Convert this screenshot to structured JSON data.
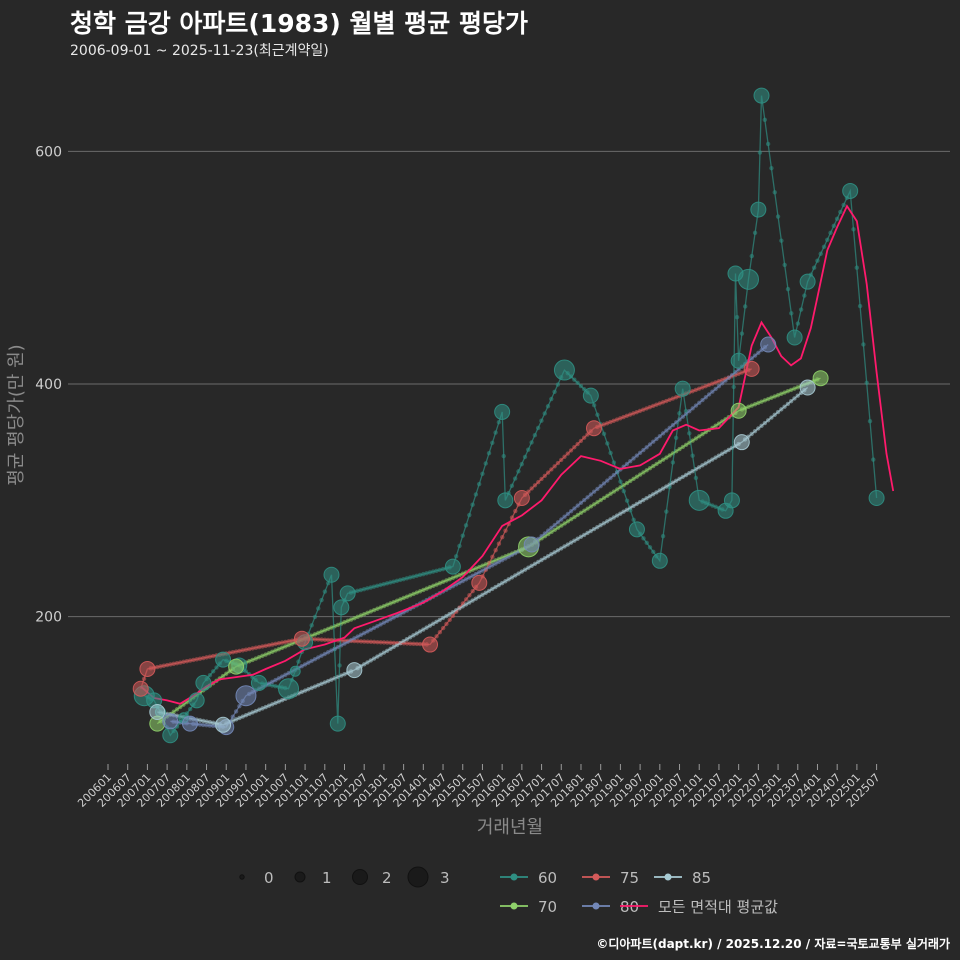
{
  "header": {
    "title": "청학 금강 아파트(1983) 월별 평균 평당가",
    "subtitle": "2006-09-01 ~ 2025-11-23(최근계약일)"
  },
  "footer": {
    "credit": "©디아파트(dapt.kr) / 2025.12.20 / 자료=국토교통부 실거래가"
  },
  "colors": {
    "s60": "#2f8f83",
    "s70": "#8fd16a",
    "s75": "#d45a5a",
    "s80": "#7388b8",
    "s85": "#a8cbd4",
    "avg": "#ff1a6c",
    "grid": "#6b6b6b"
  },
  "chart_data": {
    "type": "scatter",
    "title": "청학 금강 아파트(1983) 월별 평균 평당가",
    "xlabel": "거래년월",
    "ylabel": "평균 평당가(만 원)",
    "x_start": "2006-01",
    "x_end": "2025-10",
    "ylim": [
      75,
      670
    ],
    "yticks": [
      200,
      400,
      600
    ],
    "xticks": [
      "200601",
      "200607",
      "200701",
      "200707",
      "200801",
      "200807",
      "200901",
      "200907",
      "201001",
      "201007",
      "201101",
      "201107",
      "201201",
      "201207",
      "201301",
      "201307",
      "201401",
      "201407",
      "201501",
      "201507",
      "201601",
      "201607",
      "201701",
      "201707",
      "201801",
      "201807",
      "201901",
      "201907",
      "202001",
      "202007",
      "202101",
      "202107",
      "202201",
      "202207",
      "202301",
      "202307",
      "202401",
      "202407",
      "202501",
      "202507"
    ],
    "size_legend": {
      "title": "",
      "values": [
        0,
        1,
        2,
        3
      ],
      "labels": [
        "0",
        "1",
        "2",
        "3"
      ]
    },
    "series": [
      {
        "name": "60",
        "color_key": "s60",
        "points": [
          {
            "t": 2006.92,
            "v": 132,
            "s": 3
          },
          {
            "t": 2007.17,
            "v": 128,
            "s": 2
          },
          {
            "t": 2007.33,
            "v": 118,
            "s": 1
          },
          {
            "t": 2007.58,
            "v": 98,
            "s": 2
          },
          {
            "t": 2007.92,
            "v": 113,
            "s": 1
          },
          {
            "t": 2008.25,
            "v": 128,
            "s": 2
          },
          {
            "t": 2008.42,
            "v": 143,
            "s": 2
          },
          {
            "t": 2008.92,
            "v": 163,
            "s": 2
          },
          {
            "t": 2009.33,
            "v": 158,
            "s": 2
          },
          {
            "t": 2009.83,
            "v": 143,
            "s": 2
          },
          {
            "t": 2010.58,
            "v": 138,
            "s": 3
          },
          {
            "t": 2010.75,
            "v": 153,
            "s": 1
          },
          {
            "t": 2011.0,
            "v": 178,
            "s": 2
          },
          {
            "t": 2011.67,
            "v": 236,
            "s": 2
          },
          {
            "t": 2011.83,
            "v": 108,
            "s": 2
          },
          {
            "t": 2011.92,
            "v": 208,
            "s": 2
          },
          {
            "t": 2012.08,
            "v": 220,
            "s": 2
          },
          {
            "t": 2014.75,
            "v": 243,
            "s": 2
          },
          {
            "t": 2016.0,
            "v": 376,
            "s": 2
          },
          {
            "t": 2016.08,
            "v": 300,
            "s": 2
          },
          {
            "t": 2017.58,
            "v": 412,
            "s": 3
          },
          {
            "t": 2018.25,
            "v": 390,
            "s": 2
          },
          {
            "t": 2019.42,
            "v": 275,
            "s": 2
          },
          {
            "t": 2020.0,
            "v": 248,
            "s": 2
          },
          {
            "t": 2020.58,
            "v": 396,
            "s": 2
          },
          {
            "t": 2021.0,
            "v": 300,
            "s": 3
          },
          {
            "t": 2021.67,
            "v": 291,
            "s": 2
          },
          {
            "t": 2021.83,
            "v": 300,
            "s": 2
          },
          {
            "t": 2021.92,
            "v": 495,
            "s": 2
          },
          {
            "t": 2022.0,
            "v": 420,
            "s": 2
          },
          {
            "t": 2022.25,
            "v": 490,
            "s": 3
          },
          {
            "t": 2022.5,
            "v": 550,
            "s": 2
          },
          {
            "t": 2022.58,
            "v": 648,
            "s": 2
          },
          {
            "t": 2023.42,
            "v": 440,
            "s": 2
          },
          {
            "t": 2023.75,
            "v": 488,
            "s": 2
          },
          {
            "t": 2024.83,
            "v": 566,
            "s": 2
          },
          {
            "t": 2025.5,
            "v": 302,
            "s": 2
          }
        ]
      },
      {
        "name": "70",
        "color_key": "s70",
        "points": [
          {
            "t": 2007.25,
            "v": 108,
            "s": 2
          },
          {
            "t": 2009.25,
            "v": 157,
            "s": 2
          },
          {
            "t": 2016.67,
            "v": 260,
            "s": 3
          },
          {
            "t": 2022.0,
            "v": 377,
            "s": 2
          },
          {
            "t": 2024.08,
            "v": 405,
            "s": 2
          }
        ]
      },
      {
        "name": "75",
        "color_key": "s75",
        "points": [
          {
            "t": 2006.83,
            "v": 138,
            "s": 2
          },
          {
            "t": 2007.0,
            "v": 155,
            "s": 2
          },
          {
            "t": 2010.92,
            "v": 181,
            "s": 2
          },
          {
            "t": 2014.17,
            "v": 176,
            "s": 2
          },
          {
            "t": 2015.42,
            "v": 229,
            "s": 2
          },
          {
            "t": 2016.5,
            "v": 302,
            "s": 2
          },
          {
            "t": 2018.33,
            "v": 362,
            "s": 2
          },
          {
            "t": 2022.33,
            "v": 413,
            "s": 2
          }
        ]
      },
      {
        "name": "80",
        "color_key": "s80",
        "points": [
          {
            "t": 2007.58,
            "v": 110,
            "s": 2
          },
          {
            "t": 2008.08,
            "v": 108,
            "s": 2
          },
          {
            "t": 2009.0,
            "v": 105,
            "s": 2
          },
          {
            "t": 2009.5,
            "v": 132,
            "s": 3
          },
          {
            "t": 2016.75,
            "v": 262,
            "s": 2
          },
          {
            "t": 2022.75,
            "v": 434,
            "s": 2
          }
        ]
      },
      {
        "name": "85",
        "color_key": "s85",
        "points": [
          {
            "t": 2007.25,
            "v": 118,
            "s": 2
          },
          {
            "t": 2008.92,
            "v": 107,
            "s": 2
          },
          {
            "t": 2012.25,
            "v": 154,
            "s": 2
          },
          {
            "t": 2022.08,
            "v": 350,
            "s": 2
          },
          {
            "t": 2023.75,
            "v": 397,
            "s": 2
          }
        ]
      },
      {
        "name": "모든 면적대 평균값",
        "color_key": "avg",
        "points": [
          {
            "t": 2006.83,
            "v": 140
          },
          {
            "t": 2007.17,
            "v": 130
          },
          {
            "t": 2007.5,
            "v": 128
          },
          {
            "t": 2007.83,
            "v": 125
          },
          {
            "t": 2008.17,
            "v": 132
          },
          {
            "t": 2008.5,
            "v": 140
          },
          {
            "t": 2008.83,
            "v": 146
          },
          {
            "t": 2009.25,
            "v": 148
          },
          {
            "t": 2009.67,
            "v": 150
          },
          {
            "t": 2010.0,
            "v": 155
          },
          {
            "t": 2010.5,
            "v": 162
          },
          {
            "t": 2011.0,
            "v": 172
          },
          {
            "t": 2011.5,
            "v": 176
          },
          {
            "t": 2012.0,
            "v": 182
          },
          {
            "t": 2012.25,
            "v": 190
          },
          {
            "t": 2012.75,
            "v": 196
          },
          {
            "t": 2013.33,
            "v": 203
          },
          {
            "t": 2014.0,
            "v": 212
          },
          {
            "t": 2014.5,
            "v": 222
          },
          {
            "t": 2015.0,
            "v": 234
          },
          {
            "t": 2015.5,
            "v": 252
          },
          {
            "t": 2016.0,
            "v": 278
          },
          {
            "t": 2016.5,
            "v": 287
          },
          {
            "t": 2017.0,
            "v": 300
          },
          {
            "t": 2017.5,
            "v": 322
          },
          {
            "t": 2018.0,
            "v": 338
          },
          {
            "t": 2018.5,
            "v": 334
          },
          {
            "t": 2019.0,
            "v": 327
          },
          {
            "t": 2019.5,
            "v": 330
          },
          {
            "t": 2020.0,
            "v": 340
          },
          {
            "t": 2020.33,
            "v": 360
          },
          {
            "t": 2020.67,
            "v": 365
          },
          {
            "t": 2021.0,
            "v": 360
          },
          {
            "t": 2021.5,
            "v": 362
          },
          {
            "t": 2022.0,
            "v": 380
          },
          {
            "t": 2022.33,
            "v": 433
          },
          {
            "t": 2022.58,
            "v": 453
          },
          {
            "t": 2022.83,
            "v": 440
          },
          {
            "t": 2023.08,
            "v": 424
          },
          {
            "t": 2023.33,
            "v": 416
          },
          {
            "t": 2023.58,
            "v": 422
          },
          {
            "t": 2023.83,
            "v": 448
          },
          {
            "t": 2024.0,
            "v": 475
          },
          {
            "t": 2024.25,
            "v": 515
          },
          {
            "t": 2024.5,
            "v": 535
          },
          {
            "t": 2024.75,
            "v": 553
          },
          {
            "t": 2025.0,
            "v": 540
          },
          {
            "t": 2025.25,
            "v": 486
          },
          {
            "t": 2025.5,
            "v": 410
          },
          {
            "t": 2025.75,
            "v": 340
          },
          {
            "t": 2025.92,
            "v": 308
          }
        ]
      }
    ]
  }
}
